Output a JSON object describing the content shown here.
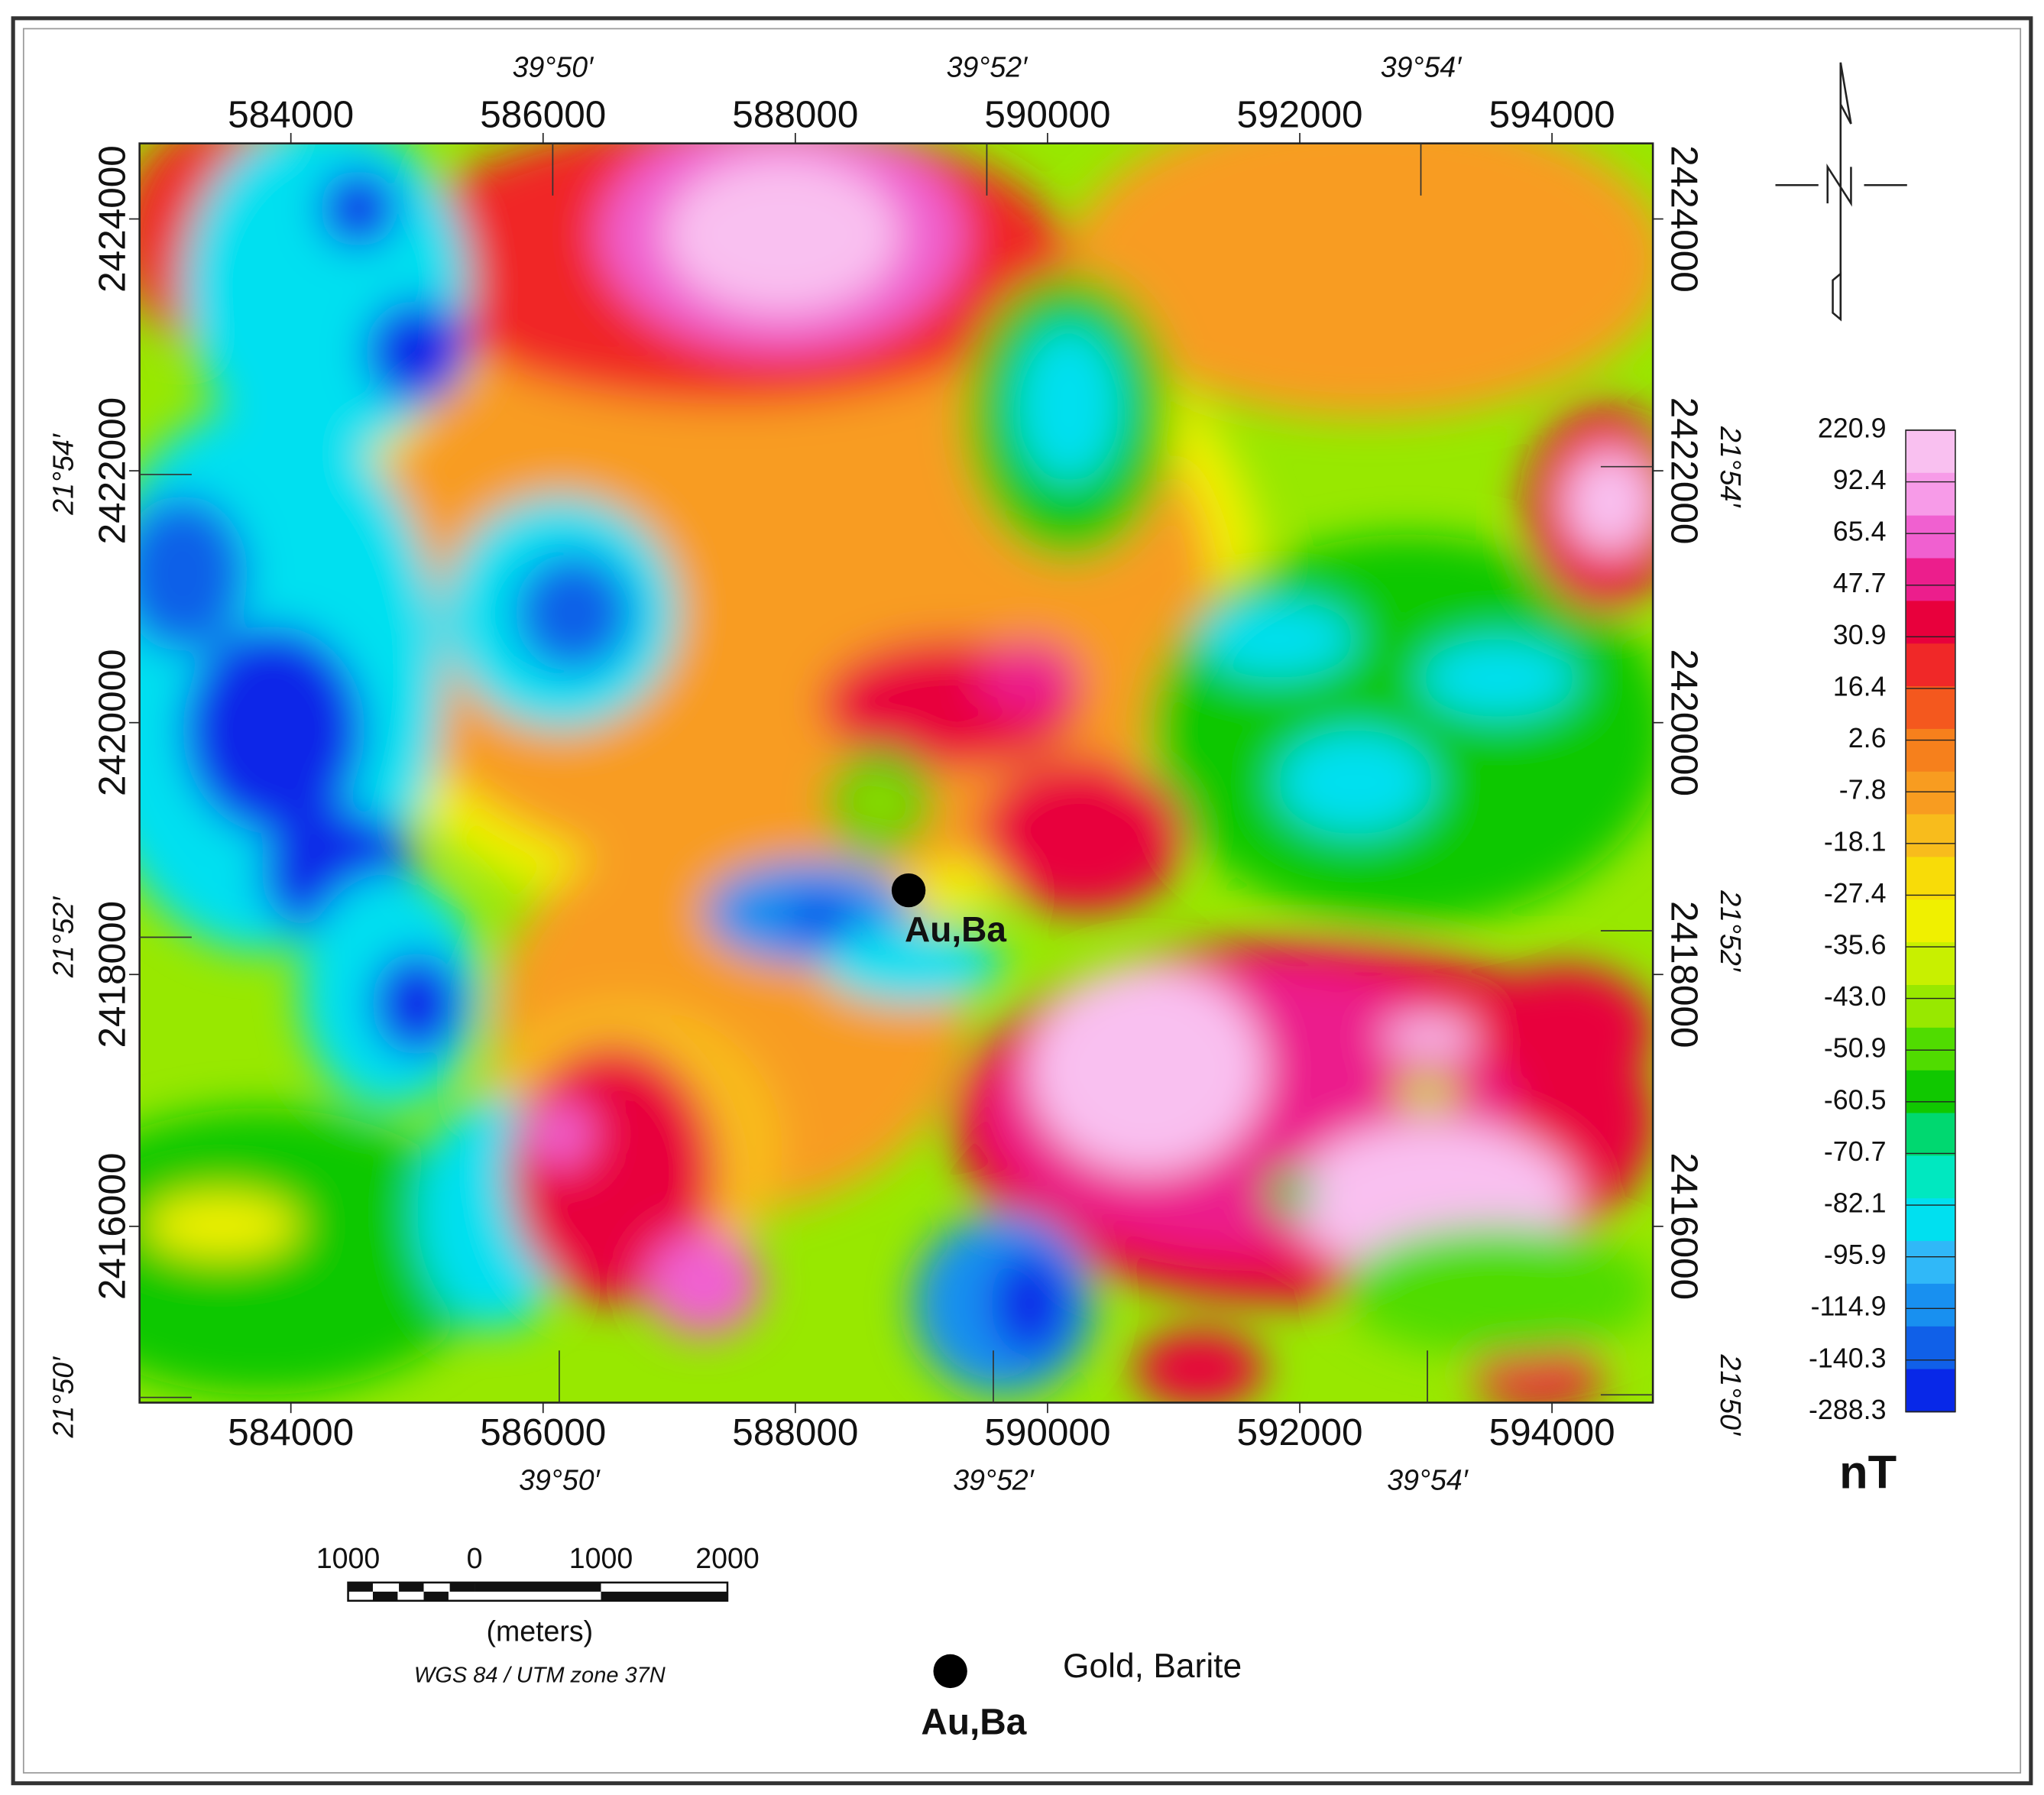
{
  "map": {
    "x_ticks": [
      584000,
      586000,
      588000,
      590000,
      592000,
      594000
    ],
    "y_ticks": [
      2416000,
      2418000,
      2420000,
      2422000,
      2424000
    ],
    "xlim": [
      582800,
      594800
    ],
    "ylim": [
      2414600,
      2424600
    ],
    "longitudes": [
      "39°50′",
      "39°52′",
      "39°54′"
    ],
    "latitudes": [
      "21°54′",
      "21°52′",
      "21°50′"
    ],
    "site": {
      "label": "Au,Ba"
    },
    "colorbar": {
      "ticks": [
        220.9,
        92.4,
        65.4,
        47.7,
        30.9,
        16.4,
        2.6,
        -7.8,
        -18.1,
        -27.4,
        -35.6,
        {
          "value": -43,
          "label": "-43.0"
        },
        -50.9,
        -60.5,
        -70.7,
        -82.1,
        -95.9,
        -114.9,
        -140.3,
        -288.3
      ],
      "unit": "nT",
      "palette": [
        "#f9c0f0",
        "#f79be8",
        "#f060d0",
        "#ec1e8c",
        "#e8003c",
        "#f02828",
        "#f4581e",
        "#f6801c",
        "#f89c20",
        "#f8bc1c",
        "#f8dc08",
        "#f0f000",
        "#c8f000",
        "#98e800",
        "#50dc00",
        "#10c800",
        "#00d870",
        "#00e8c0",
        "#00e0f0",
        "#30b8f8",
        "#1890f0",
        "#1060e8",
        "#0828e8"
      ]
    },
    "scale_bar": {
      "labels": [
        1000,
        0,
        1000,
        2000
      ],
      "unit": "(meters)",
      "projection": "WGS 84 / UTM zone 37N"
    },
    "legend": {
      "symbol": "Au,Ba",
      "text": "Gold, Barite"
    }
  }
}
